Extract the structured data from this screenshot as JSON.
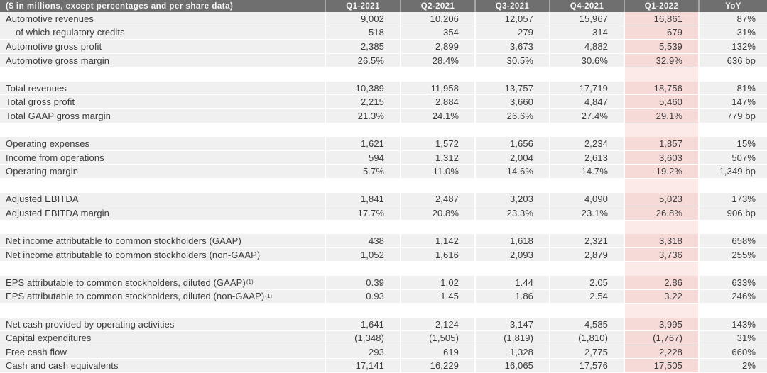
{
  "colors": {
    "header_bg": "#6f6f6f",
    "header_text": "#f7f7f7",
    "header_separator": "#a6a6a6",
    "row_bg": "#f1f0f0",
    "row_separator": "#ffffff",
    "body_text": "#3b3b3b",
    "highlight_cell_bg": "#f5dad7",
    "highlight_spacer_bg": "#fbeae8"
  },
  "chart_data": {
    "type": "table",
    "unit_note": "($ in millions, except percentages and per share data)",
    "columns": [
      "Q1-2021",
      "Q2-2021",
      "Q3-2021",
      "Q4-2021",
      "Q1-2022",
      "YoY"
    ],
    "highlight_column": "Q1-2022",
    "highlight_column_index": 4,
    "groups": [
      {
        "name": "automotive",
        "rows": [
          {
            "label": "Automotive revenues",
            "values": [
              "9,002",
              "10,206",
              "12,057",
              "15,967",
              "16,861",
              "87%"
            ]
          },
          {
            "label": "of which regulatory credits",
            "indent": true,
            "values": [
              "518",
              "354",
              "279",
              "314",
              "679",
              "31%"
            ]
          },
          {
            "label": "Automotive gross profit",
            "values": [
              "2,385",
              "2,899",
              "3,673",
              "4,882",
              "5,539",
              "132%"
            ]
          },
          {
            "label": "Automotive gross margin",
            "values": [
              "26.5%",
              "28.4%",
              "30.5%",
              "30.6%",
              "32.9%",
              "636 bp"
            ]
          }
        ]
      },
      {
        "name": "totals",
        "rows": [
          {
            "label": "Total revenues",
            "values": [
              "10,389",
              "11,958",
              "13,757",
              "17,719",
              "18,756",
              "81%"
            ]
          },
          {
            "label": "Total gross profit",
            "values": [
              "2,215",
              "2,884",
              "3,660",
              "4,847",
              "5,460",
              "147%"
            ]
          },
          {
            "label": "Total GAAP gross margin",
            "values": [
              "21.3%",
              "24.1%",
              "26.6%",
              "27.4%",
              "29.1%",
              "779 bp"
            ]
          }
        ]
      },
      {
        "name": "operations",
        "rows": [
          {
            "label": "Operating expenses",
            "values": [
              "1,621",
              "1,572",
              "1,656",
              "2,234",
              "1,857",
              "15%"
            ]
          },
          {
            "label": "Income from operations",
            "values": [
              "594",
              "1,312",
              "2,004",
              "2,613",
              "3,603",
              "507%"
            ]
          },
          {
            "label": "Operating margin",
            "values": [
              "5.7%",
              "11.0%",
              "14.6%",
              "14.7%",
              "19.2%",
              "1,349 bp"
            ]
          }
        ]
      },
      {
        "name": "ebitda",
        "rows": [
          {
            "label": "Adjusted EBITDA",
            "values": [
              "1,841",
              "2,487",
              "3,203",
              "4,090",
              "5,023",
              "173%"
            ]
          },
          {
            "label": "Adjusted EBITDA margin",
            "values": [
              "17.7%",
              "20.8%",
              "23.3%",
              "23.1%",
              "26.8%",
              "906 bp"
            ]
          }
        ]
      },
      {
        "name": "net-income",
        "rows": [
          {
            "label": "Net income attributable to common stockholders (GAAP)",
            "values": [
              "438",
              "1,142",
              "1,618",
              "2,321",
              "3,318",
              "658%"
            ]
          },
          {
            "label": "Net income attributable to common stockholders (non-GAAP)",
            "values": [
              "1,052",
              "1,616",
              "2,093",
              "2,879",
              "3,736",
              "255%"
            ]
          }
        ]
      },
      {
        "name": "eps",
        "rows": [
          {
            "label": "EPS attributable to common stockholders, diluted (GAAP)",
            "sup": "(1)",
            "values": [
              "0.39",
              "1.02",
              "1.44",
              "2.05",
              "2.86",
              "633%"
            ]
          },
          {
            "label": "EPS attributable to common stockholders, diluted (non-GAAP)",
            "sup": "(1)",
            "values": [
              "0.93",
              "1.45",
              "1.86",
              "2.54",
              "3.22",
              "246%"
            ]
          }
        ]
      },
      {
        "name": "cash",
        "rows": [
          {
            "label": "Net cash provided by operating activities",
            "values": [
              "1,641",
              "2,124",
              "3,147",
              "4,585",
              "3,995",
              "143%"
            ]
          },
          {
            "label": "Capital expenditures",
            "values": [
              "(1,348)",
              "(1,505)",
              "(1,819)",
              "(1,810)",
              "(1,767)",
              "31%"
            ]
          },
          {
            "label": "Free cash flow",
            "values": [
              "293",
              "619",
              "1,328",
              "2,775",
              "2,228",
              "660%"
            ]
          },
          {
            "label": "Cash and cash equivalents",
            "values": [
              "17,141",
              "16,229",
              "16,065",
              "17,576",
              "17,505",
              "2%"
            ]
          }
        ]
      }
    ]
  }
}
